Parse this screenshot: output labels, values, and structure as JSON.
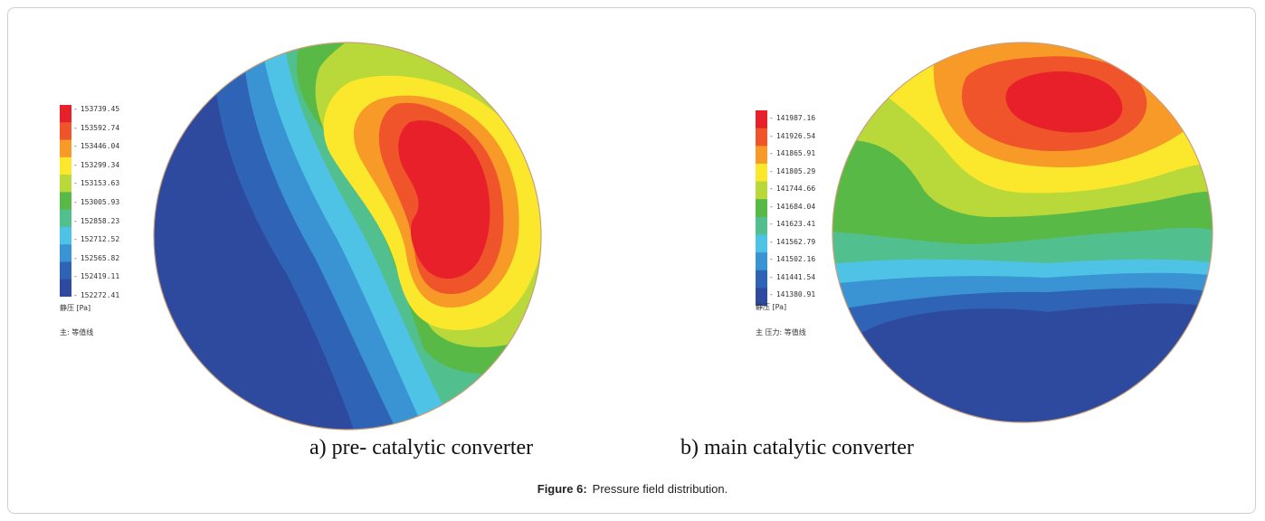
{
  "panels": [
    {
      "id": "a",
      "caption": "a) pre- catalytic converter",
      "legend_values": [
        "153739.45",
        "153592.74",
        "153446.04",
        "153299.34",
        "153153.63",
        "153005.93",
        "152858.23",
        "152712.52",
        "152565.82",
        "152419.11",
        "152272.41"
      ],
      "legend_unit": "静压 [Pa]",
      "legend_note": "主: 等值线"
    },
    {
      "id": "b",
      "caption": "b) main catalytic converter",
      "legend_values": [
        "141987.16",
        "141926.54",
        "141865.91",
        "141805.29",
        "141744.66",
        "141684.04",
        "141623.41",
        "141562.79",
        "141502.16",
        "141441.54",
        "141380.91"
      ],
      "legend_unit": "静压 [Pa]",
      "legend_note": "主 压力: 等值线"
    }
  ],
  "colors": [
    "#e8202a",
    "#f0542a",
    "#f79a28",
    "#fbe82c",
    "#b9d83a",
    "#59b947",
    "#52bf8f",
    "#4fc3e6",
    "#3a94d4",
    "#2f63b6",
    "#2d4a9e"
  ],
  "figure_caption": {
    "label": "Figure 6:",
    "text": "Pressure field distribution."
  }
}
